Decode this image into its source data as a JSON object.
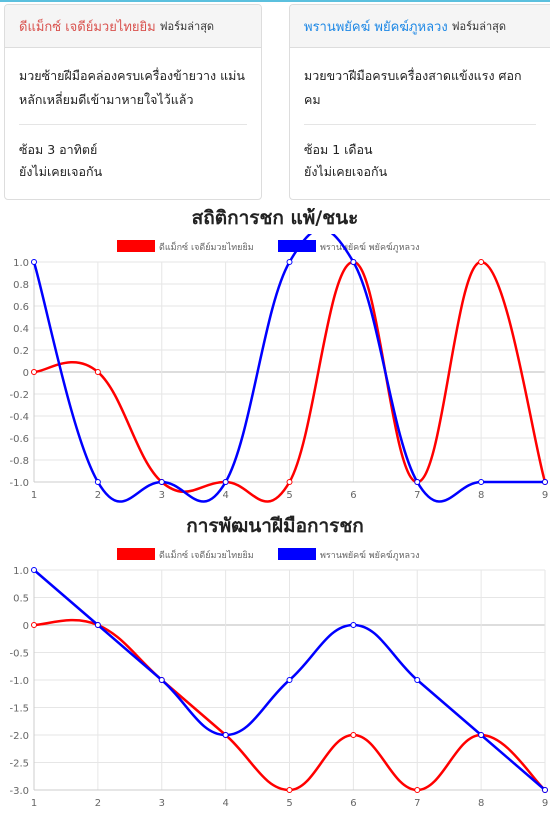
{
  "fighters": [
    {
      "name": "ดีแม็กซ์ เจดีย์มวยไทยยิม",
      "sub": "ฟอร์มล่าสุด",
      "desc": "มวยซ้ายฝีมือคล่องครบเครื่องข้ายวาง แม่นหลักเหลี่ยมดีเข้ามาหายใจไว้แล้ว",
      "fact1": "ซ้อม 3 อาทิตย์",
      "fact2": "ยังไม่เคยเจอกัน",
      "color": "#d9534f"
    },
    {
      "name": "พรานพยัคฆ์ พยัคฆ์ภูหลวง",
      "sub": "ฟอร์มล่าสุด",
      "desc": "มวยขวาฝีมือครบเครื่องสาดแข้งแรง ศอกคม",
      "fact1": "ซ้อม 1 เดือน",
      "fact2": "ยังไม่เคยเจอกัน",
      "color": "#1e88e5"
    }
  ],
  "chart_data": [
    {
      "type": "line",
      "title": "สถิติการชก แพ้/ชนะ",
      "x": [
        1,
        2,
        3,
        4,
        5,
        6,
        7,
        8,
        9
      ],
      "ylim": [
        -1.0,
        1.0
      ],
      "yticks": [
        1.0,
        0.8,
        0.6,
        0.4,
        0.2,
        0,
        -0.2,
        -0.4,
        -0.6,
        -0.8,
        -1.0
      ],
      "ytick_labels": [
        "1.0",
        "0.8",
        "0.6",
        "0.4",
        "0.2",
        "0",
        "-0.2",
        "-0.4",
        "-0.6",
        "-0.8",
        "-1.0"
      ],
      "legend_position": "top",
      "series": [
        {
          "name": "ดีแม็กซ์ เจดีย์มวยไทยยิม",
          "color": "#ff0000",
          "values": [
            0,
            0,
            -1,
            -1,
            -1,
            1,
            -1,
            1,
            -1
          ]
        },
        {
          "name": "พรานพยัคฆ์ พยัคฆ์ภูหลวง",
          "color": "#0000ff",
          "values": [
            1,
            -1,
            -1,
            -1,
            1,
            1,
            -1,
            -1,
            -1
          ]
        }
      ]
    },
    {
      "type": "line",
      "title": "การพัฒนาฝีมือการชก",
      "x": [
        1,
        2,
        3,
        4,
        5,
        6,
        7,
        8,
        9
      ],
      "ylim": [
        -3.0,
        1.0
      ],
      "yticks": [
        1.0,
        0.5,
        0,
        -0.5,
        -1.0,
        -1.5,
        -2.0,
        -2.5,
        -3.0
      ],
      "ytick_labels": [
        "1.0",
        "0.5",
        "0",
        "-0.5",
        "-1.0",
        "-1.5",
        "-2.0",
        "-2.5",
        "-3.0"
      ],
      "legend_position": "top",
      "series": [
        {
          "name": "ดีแม็กซ์ เจดีย์มวยไทยยิม",
          "color": "#ff0000",
          "values": [
            0,
            0,
            -1,
            -2,
            -3,
            -2,
            -3,
            -2,
            -3
          ]
        },
        {
          "name": "พรานพยัคฆ์ พยัคฆ์ภูหลวง",
          "color": "#0000ff",
          "values": [
            1,
            0,
            -1,
            -2,
            -1,
            0,
            -1,
            -2,
            -3
          ]
        }
      ]
    }
  ]
}
